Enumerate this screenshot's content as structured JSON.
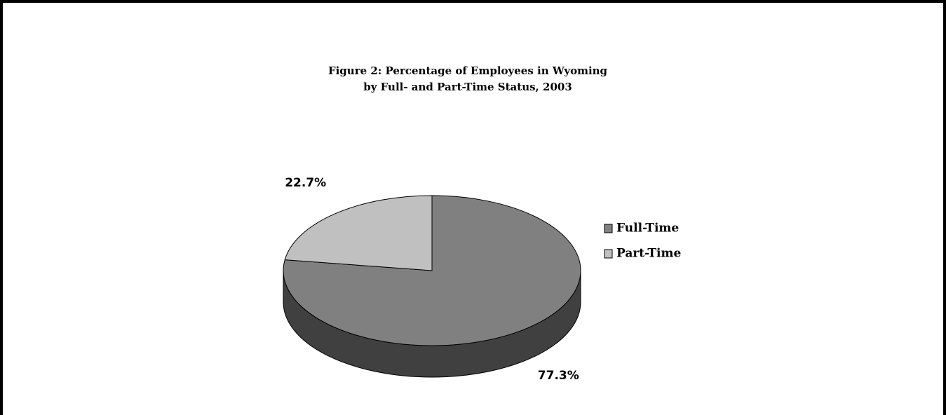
{
  "chart_data": {
    "type": "pie",
    "title": [
      "Figure 2: Percentage of Employees in Wyoming",
      "by Full- and Part-Time Status, 2003"
    ],
    "categories": [
      "Full-Time",
      "Part-Time"
    ],
    "values": [
      77.3,
      22.7
    ],
    "value_labels": [
      "77.3%",
      "22.7%"
    ],
    "colors": [
      "#808080",
      "#c0c0c0"
    ],
    "legend": "right"
  }
}
